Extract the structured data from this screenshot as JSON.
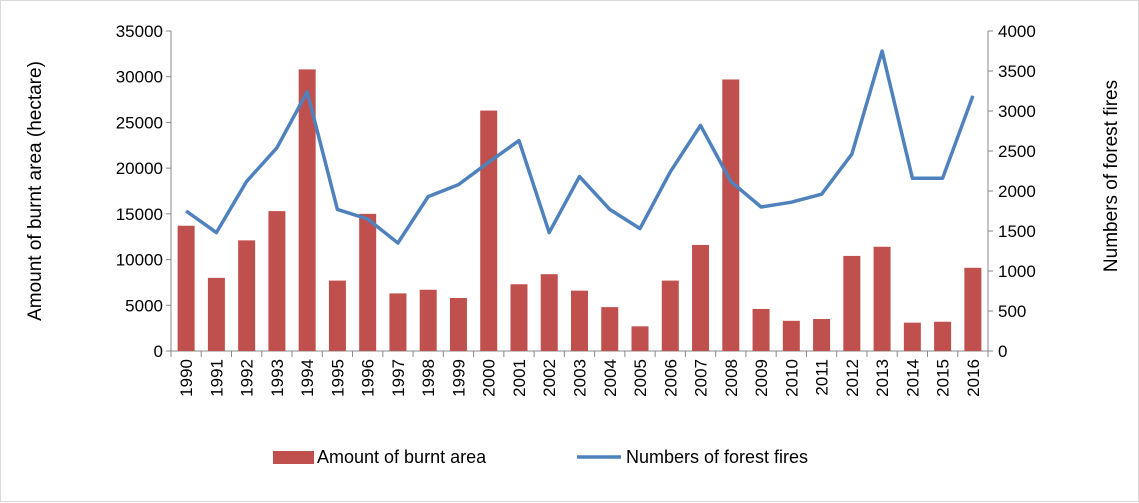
{
  "chart_data": {
    "type": "bar",
    "categories": [
      "1990",
      "1991",
      "1992",
      "1993",
      "1994",
      "1995",
      "1996",
      "1997",
      "1998",
      "1999",
      "2000",
      "2001",
      "2002",
      "2003",
      "2004",
      "2005",
      "2006",
      "2007",
      "2008",
      "2009",
      "2010",
      "2011",
      "2012",
      "2013",
      "2014",
      "2015",
      "2016"
    ],
    "series": [
      {
        "name": "Amount of burnt area",
        "type": "bar",
        "axis": "left",
        "color": "#C0504D",
        "values": [
          13700,
          8000,
          12100,
          15300,
          30800,
          7700,
          15000,
          6300,
          6700,
          5800,
          26300,
          7300,
          8400,
          6600,
          4800,
          2700,
          7700,
          11600,
          29700,
          4600,
          3300,
          3500,
          10400,
          11400,
          3100,
          3200,
          9100
        ]
      },
      {
        "name": "Numbers of forest fires",
        "type": "line",
        "axis": "right",
        "color": "#4F81BD",
        "values": [
          1750,
          1480,
          2120,
          2540,
          3240,
          1770,
          1650,
          1350,
          1930,
          2080,
          2360,
          2630,
          1480,
          2180,
          1770,
          1530,
          2240,
          2820,
          2120,
          1800,
          1860,
          1960,
          2460,
          3750,
          2160,
          2160,
          3190
        ]
      }
    ],
    "ylabel": "Amount  of  burnt  area (hectare)",
    "y2label": "Numbers  of  forest  fires",
    "ylim": [
      0,
      35000
    ],
    "y2lim": [
      0,
      4000
    ],
    "yticks": [
      "0",
      "5000",
      "10000",
      "15000",
      "20000",
      "25000",
      "30000",
      "35000"
    ],
    "y2ticks": [
      "0",
      "500",
      "1000",
      "1500",
      "2000",
      "2500",
      "3000",
      "3500",
      "4000"
    ],
    "grid": false,
    "legend_position": "bottom"
  }
}
